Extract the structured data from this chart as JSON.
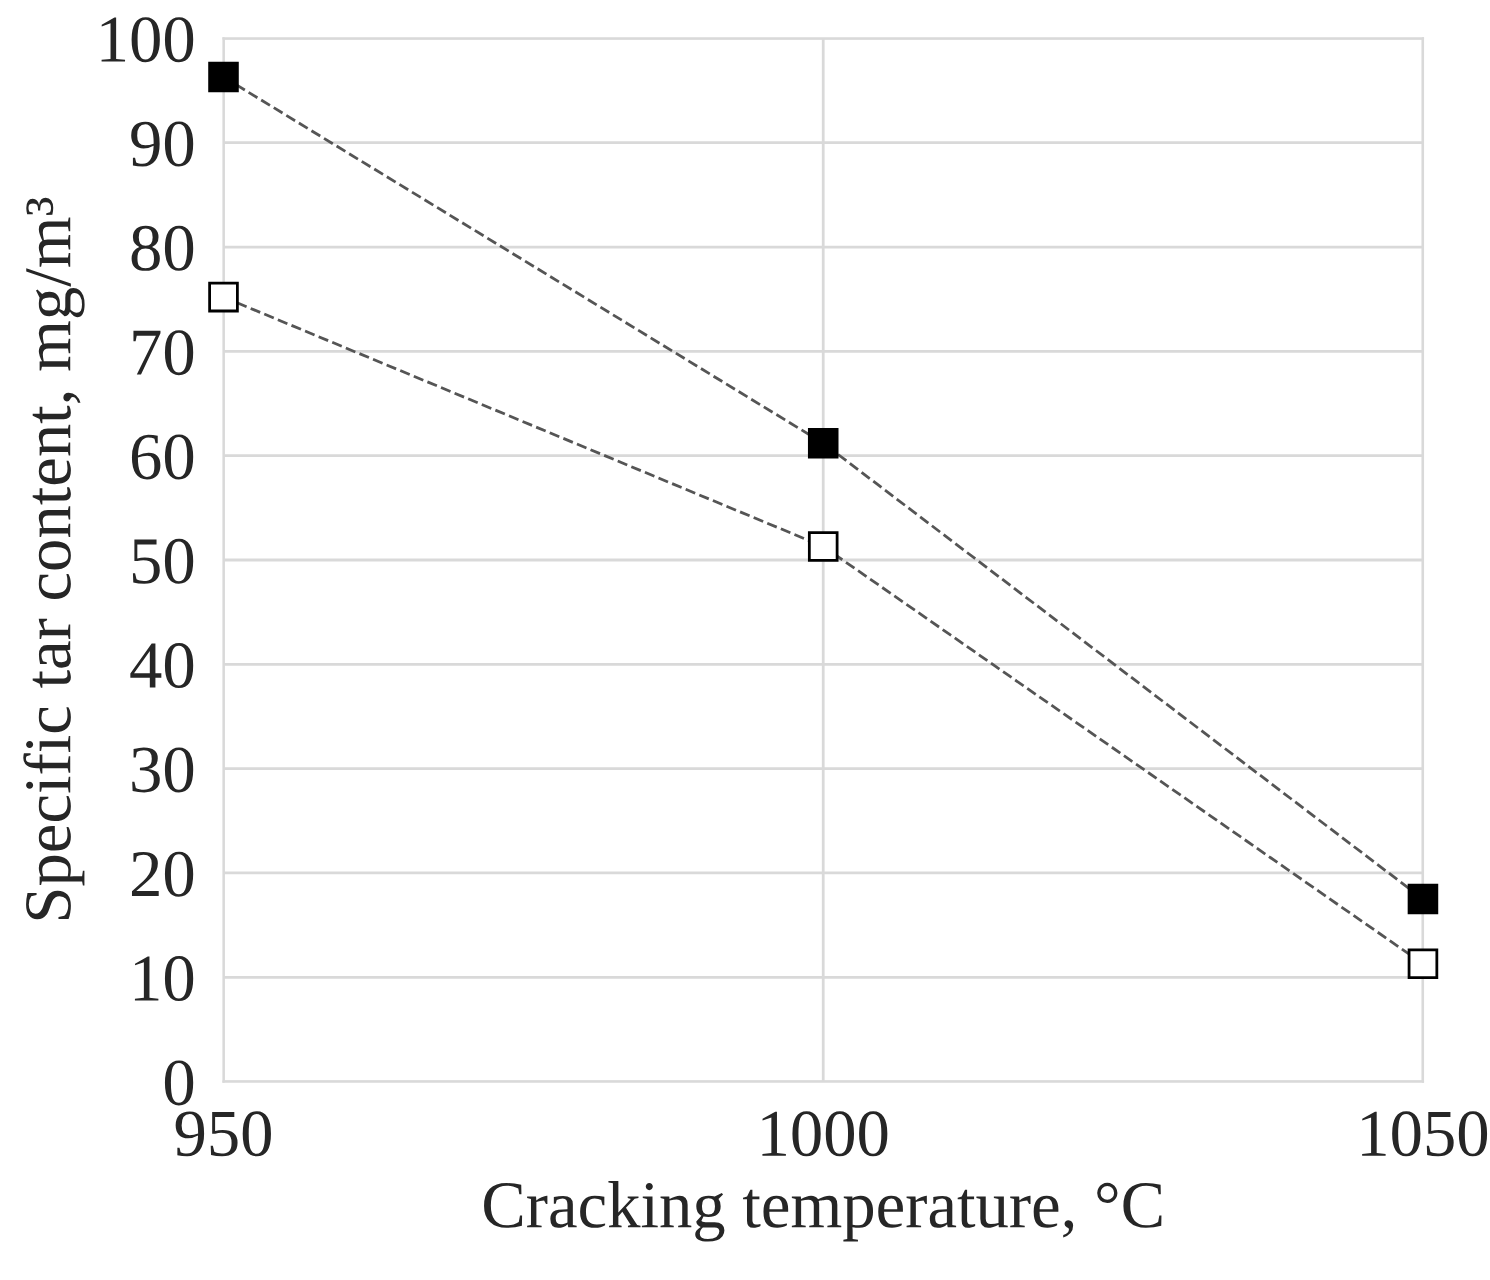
{
  "chart_data": {
    "type": "line",
    "xlabel": "Cracking temperature, °C",
    "ylabel": "Specific tar content, mg/m³",
    "x": [
      950,
      1000,
      1050
    ],
    "series": [
      {
        "color": "#000000",
        "values": [
          96.3,
          61.2,
          17.5
        ]
      },
      {
        "color": "#ffffff",
        "values": [
          75.2,
          51.3,
          11.3
        ]
      }
    ],
    "xlim": [
      950,
      1050
    ],
    "xticks": [
      950,
      1000,
      1050
    ],
    "ylim": [
      0,
      100
    ],
    "yticks": [
      0,
      10,
      20,
      30,
      40,
      50,
      60,
      70,
      80,
      90,
      100
    ],
    "grid": true,
    "marker": "square",
    "line_style": "dashed"
  }
}
